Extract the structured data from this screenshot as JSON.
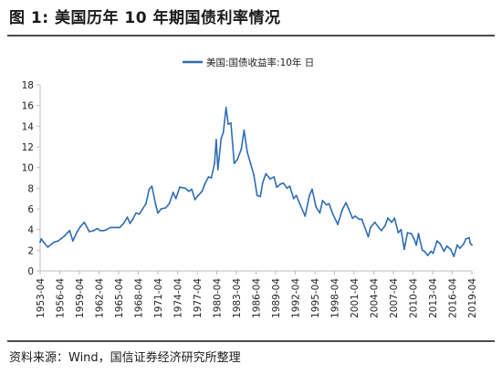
{
  "figure": {
    "title": "图 1:  美国历年 10 年期国债利率情况",
    "source": "资料来源：Wind，国信证券经济研究所整理"
  },
  "colors": {
    "series": "#2f6db4",
    "rule": "#4a4a4a",
    "axis": "#bdbdbd"
  },
  "chart_data": {
    "type": "line",
    "title": "",
    "xlabel": "",
    "ylabel": "",
    "ylim": [
      0,
      18
    ],
    "yticks": [
      0,
      2,
      4,
      6,
      8,
      10,
      12,
      14,
      16,
      18
    ],
    "xrange": [
      "1953-04",
      "2019-04"
    ],
    "xticks": [
      "1953-04",
      "1956-04",
      "1959-04",
      "1962-04",
      "1965-04",
      "1968-04",
      "1971-04",
      "1974-04",
      "1977-04",
      "1980-04",
      "1983-04",
      "1986-04",
      "1989-04",
      "1992-04",
      "1995-04",
      "1998-04",
      "2001-04",
      "2004-04",
      "2007-04",
      "2010-04",
      "2013-04",
      "2016-04",
      "2019-04"
    ],
    "legend": "top-center",
    "grid": false,
    "series": [
      {
        "name": "美国:国债收益率:10年 日",
        "x": [
          "1953-04",
          "1953-06",
          "1954-01",
          "1954-06",
          "1955-01",
          "1955-06",
          "1956-01",
          "1956-06",
          "1957-01",
          "1957-06",
          "1957-10",
          "1958-04",
          "1958-12",
          "1959-06",
          "1960-01",
          "1960-06",
          "1960-10",
          "1961-06",
          "1962-01",
          "1962-06",
          "1963-01",
          "1963-06",
          "1964-01",
          "1964-06",
          "1965-01",
          "1965-06",
          "1966-01",
          "1966-08",
          "1967-01",
          "1967-06",
          "1967-12",
          "1968-06",
          "1968-12",
          "1969-06",
          "1969-12",
          "1970-05",
          "1970-12",
          "1971-04",
          "1971-10",
          "1972-06",
          "1973-01",
          "1973-08",
          "1974-01",
          "1974-08",
          "1975-06",
          "1976-01",
          "1976-06",
          "1976-12",
          "1977-06",
          "1978-01",
          "1978-06",
          "1979-01",
          "1979-06",
          "1979-12",
          "1980-03",
          "1980-06",
          "1980-12",
          "1981-04",
          "1981-09",
          "1982-01",
          "1982-06",
          "1982-12",
          "1983-06",
          "1984-01",
          "1984-06",
          "1984-12",
          "1985-06",
          "1985-12",
          "1986-06",
          "1986-12",
          "1987-04",
          "1987-10",
          "1988-06",
          "1989-01",
          "1989-06",
          "1990-01",
          "1990-06",
          "1991-01",
          "1991-06",
          "1992-01",
          "1992-06",
          "1993-01",
          "1993-10",
          "1994-06",
          "1994-11",
          "1995-06",
          "1996-01",
          "1996-06",
          "1997-01",
          "1997-06",
          "1998-01",
          "1998-10",
          "1999-06",
          "2000-01",
          "2000-06",
          "2001-01",
          "2001-06",
          "2002-01",
          "2002-06",
          "2003-06",
          "2003-10",
          "2004-06",
          "2005-01",
          "2005-06",
          "2006-01",
          "2006-06",
          "2007-01",
          "2007-06",
          "2008-01",
          "2008-06",
          "2008-12",
          "2009-06",
          "2010-01",
          "2010-06",
          "2010-10",
          "2011-02",
          "2011-09",
          "2012-01",
          "2012-07",
          "2013-01",
          "2013-05",
          "2013-12",
          "2014-06",
          "2015-01",
          "2015-06",
          "2016-01",
          "2016-07",
          "2017-01",
          "2017-06",
          "2018-01",
          "2018-05",
          "2018-11",
          "2019-01",
          "2019-04"
        ],
        "values": [
          2.8,
          3.1,
          2.6,
          2.3,
          2.6,
          2.8,
          2.9,
          3.1,
          3.4,
          3.7,
          3.9,
          2.9,
          3.8,
          4.3,
          4.7,
          4.2,
          3.8,
          3.9,
          4.1,
          3.9,
          3.9,
          4.0,
          4.2,
          4.2,
          4.2,
          4.2,
          4.6,
          5.2,
          4.6,
          5.0,
          5.6,
          5.5,
          6.0,
          6.5,
          7.9,
          8.2,
          6.4,
          5.6,
          6.0,
          6.1,
          6.5,
          7.6,
          7.0,
          8.1,
          8.0,
          7.7,
          7.9,
          6.9,
          7.3,
          7.7,
          8.4,
          9.1,
          9.0,
          10.4,
          12.7,
          9.8,
          12.8,
          13.4,
          15.8,
          14.2,
          14.3,
          10.4,
          10.8,
          11.8,
          13.6,
          11.5,
          10.4,
          9.3,
          7.3,
          7.2,
          8.5,
          9.4,
          8.9,
          9.1,
          8.1,
          8.4,
          8.5,
          8.0,
          8.2,
          7.0,
          7.3,
          6.4,
          5.3,
          7.3,
          7.9,
          6.2,
          5.6,
          6.8,
          6.4,
          6.5,
          5.5,
          4.5,
          5.9,
          6.6,
          6.0,
          5.1,
          5.3,
          5.0,
          5.0,
          3.3,
          4.2,
          4.7,
          4.2,
          3.9,
          4.4,
          5.1,
          4.7,
          5.1,
          3.7,
          4.0,
          2.1,
          3.7,
          3.6,
          3.1,
          2.5,
          3.6,
          2.0,
          1.9,
          1.5,
          1.9,
          1.7,
          2.9,
          2.6,
          1.9,
          2.4,
          2.1,
          1.4,
          2.5,
          2.2,
          2.6,
          3.1,
          3.2,
          2.7,
          2.5
        ]
      }
    ]
  }
}
